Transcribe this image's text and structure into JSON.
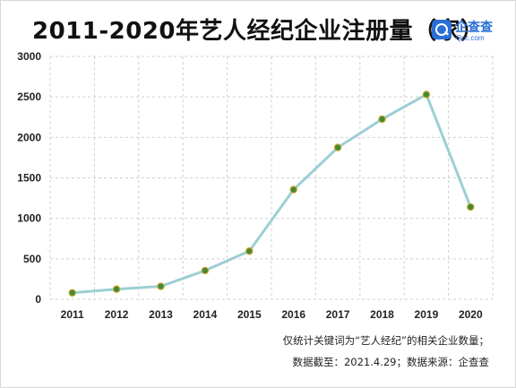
{
  "title": "2011-2020年艺人经纪企业注册量（家）",
  "logo": {
    "name": "企查查",
    "url": "Qcc.com",
    "icon": "magnifier-logo-icon",
    "color": "#2a6fd6"
  },
  "notes": {
    "line1": "仅统计关键词为“艺人经纪”的相关企业数量；",
    "line2": "数据截至：2021.4.29；数据来源：企查查"
  },
  "colors": {
    "line": "#9ccfd3",
    "marker_fill": "#3f8a38",
    "marker_edge": "#c9a227",
    "grid": "#d0d0d0",
    "frame": "#d8d8d8"
  },
  "chart_data": {
    "type": "line",
    "title": "2011-2020年艺人经纪企业注册量（家）",
    "xlabel": "",
    "ylabel": "",
    "categories": [
      "2011",
      "2012",
      "2013",
      "2014",
      "2015",
      "2016",
      "2017",
      "2018",
      "2019",
      "2020"
    ],
    "values": [
      80,
      125,
      160,
      355,
      595,
      1355,
      1875,
      2225,
      2530,
      1140
    ],
    "ylim": [
      0,
      3000
    ],
    "yticks": [
      "0",
      "500",
      "1000",
      "1500",
      "2000",
      "2500",
      "3000"
    ],
    "grid": true,
    "legend": "none"
  }
}
